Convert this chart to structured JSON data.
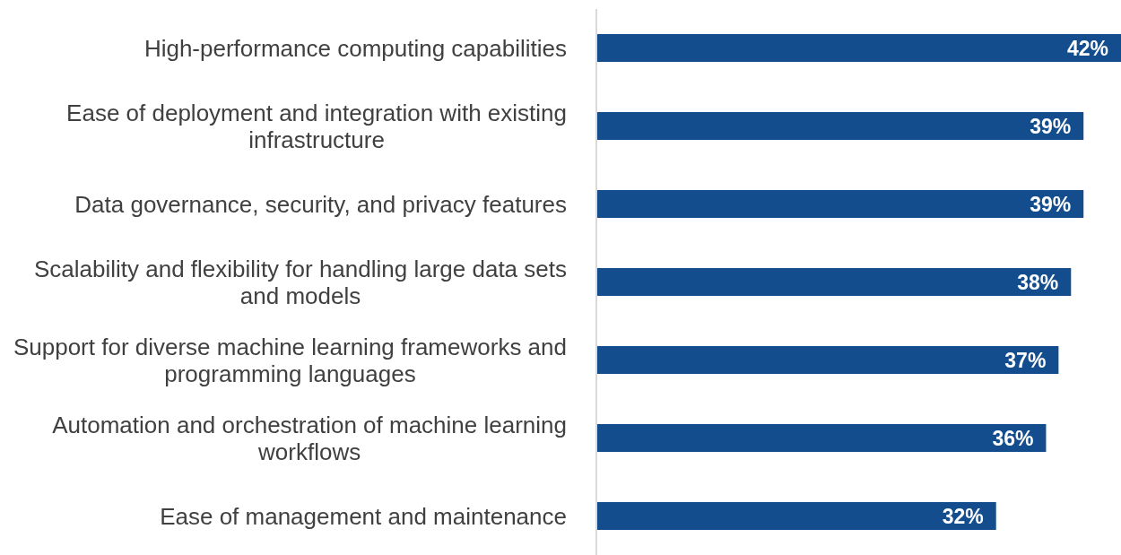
{
  "chart_data": {
    "type": "bar",
    "orientation": "horizontal",
    "categories": [
      "High-performance computing capabilities",
      "Ease of deployment and integration with existing infrastructure",
      "Data governance, security, and privacy features",
      "Scalability and flexibility for handling large data sets and models",
      "Support for diverse machine learning frameworks and programming languages",
      "Automation and orchestration of machine learning workflows",
      "Ease of management and maintenance"
    ],
    "values": [
      42,
      39,
      39,
      38,
      37,
      36,
      32
    ],
    "value_labels": [
      "42%",
      "39%",
      "39%",
      "38%",
      "37%",
      "36%",
      "32%"
    ],
    "color": "#134d8e",
    "xlim": [
      0,
      42
    ],
    "tick_labels": "y",
    "grid": false
  }
}
